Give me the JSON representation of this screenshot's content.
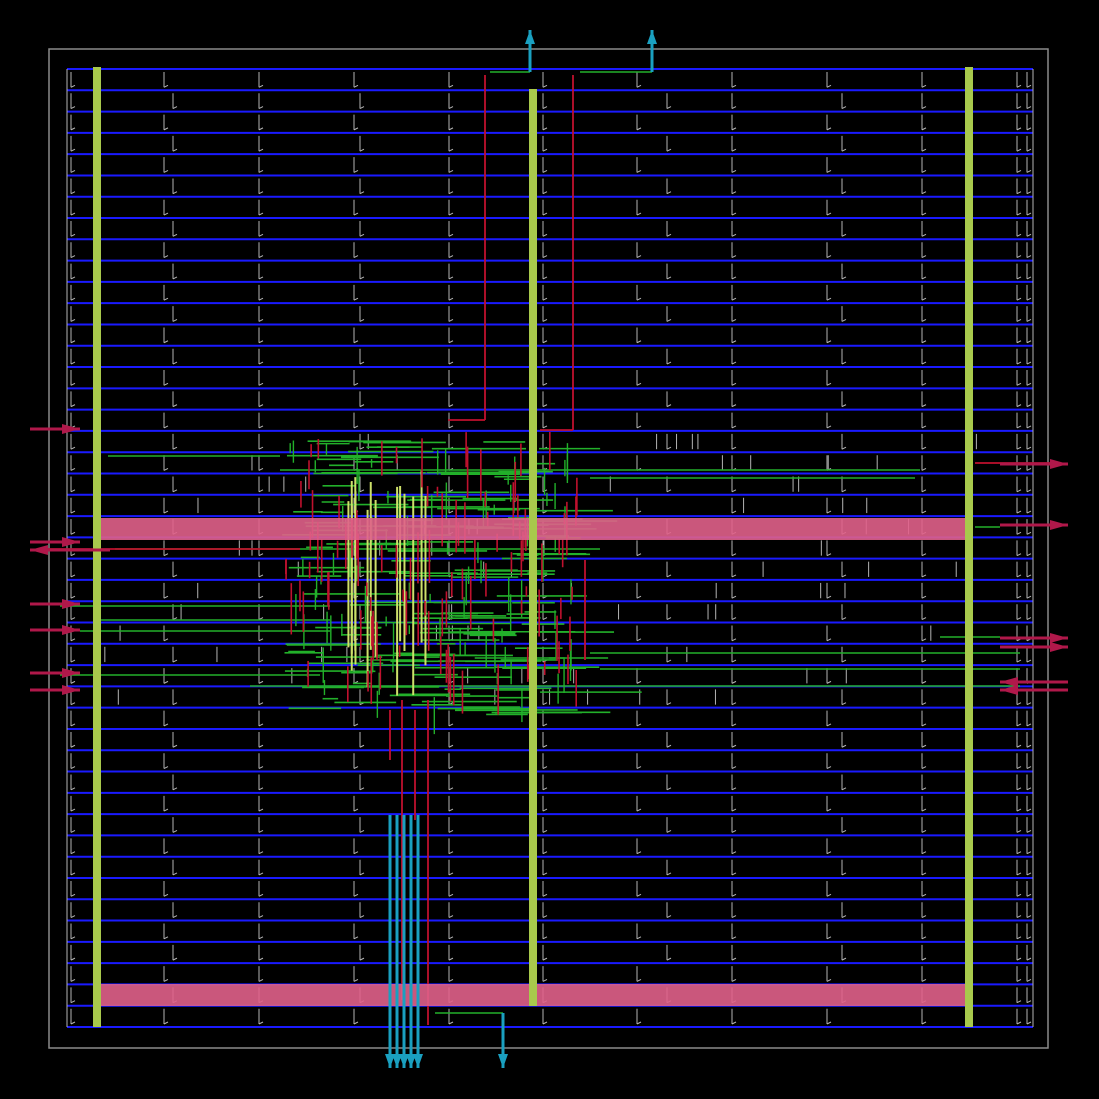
{
  "colors": {
    "background": "#000000",
    "die_outline": "#8a8a8a",
    "metal1_rows": "#1a1aff",
    "metal2_power_straps": "#a8c94c",
    "metal3_power_straps": "#e0608a",
    "signal_m2": "#22b02a",
    "signal_m3": "#c0112e",
    "pin_arrow_vertical": "#1aa0c0",
    "pin_arrow_horizontal": "#b0184a",
    "cell_outline": "#b4b4b4"
  },
  "layout": {
    "std_cell_row_count": 45,
    "vertical_power_straps": 3,
    "horizontal_power_straps": 2,
    "top_pins": 2,
    "bottom_pins": 5,
    "left_pins": 7,
    "right_pins": 7,
    "routing_density": "dense-center-cluster"
  }
}
